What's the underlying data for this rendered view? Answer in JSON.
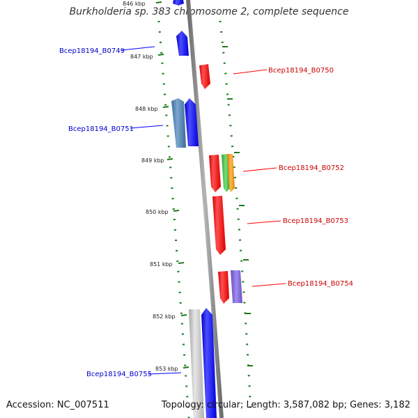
{
  "title": "Burkholderia sp. 383 chromosome 2, complete sequence",
  "accession": "Accession: NC_007511",
  "topology": "Topology: circular; Length: 3,587,082 bp; Genes: 3,182",
  "colors": {
    "reverse": "#0000ff",
    "forward": "#ff0000",
    "tick": "#1a7a1a",
    "backbone": "#8a8a8a"
  },
  "ticks": [
    {
      "label": "846 kbp"
    },
    {
      "label": "847 kbp"
    },
    {
      "label": "848 kbp"
    },
    {
      "label": "849 kbp"
    },
    {
      "label": "850 kbp"
    },
    {
      "label": "851 kbp"
    },
    {
      "label": "852 kbp"
    },
    {
      "label": "853 kbp"
    }
  ],
  "genes": [
    {
      "label": "Bcep18194_B0749",
      "strand": "reverse"
    },
    {
      "label": "Bcep18194_B0750",
      "strand": "forward"
    },
    {
      "label": "Bcep18194_B0751",
      "strand": "reverse"
    },
    {
      "label": "Bcep18194_B0752",
      "strand": "forward"
    },
    {
      "label": "Bcep18194_B0753",
      "strand": "forward"
    },
    {
      "label": "Bcep18194_B0754",
      "strand": "forward"
    },
    {
      "label": "Bcep18194_B0755",
      "strand": "reverse"
    }
  ]
}
